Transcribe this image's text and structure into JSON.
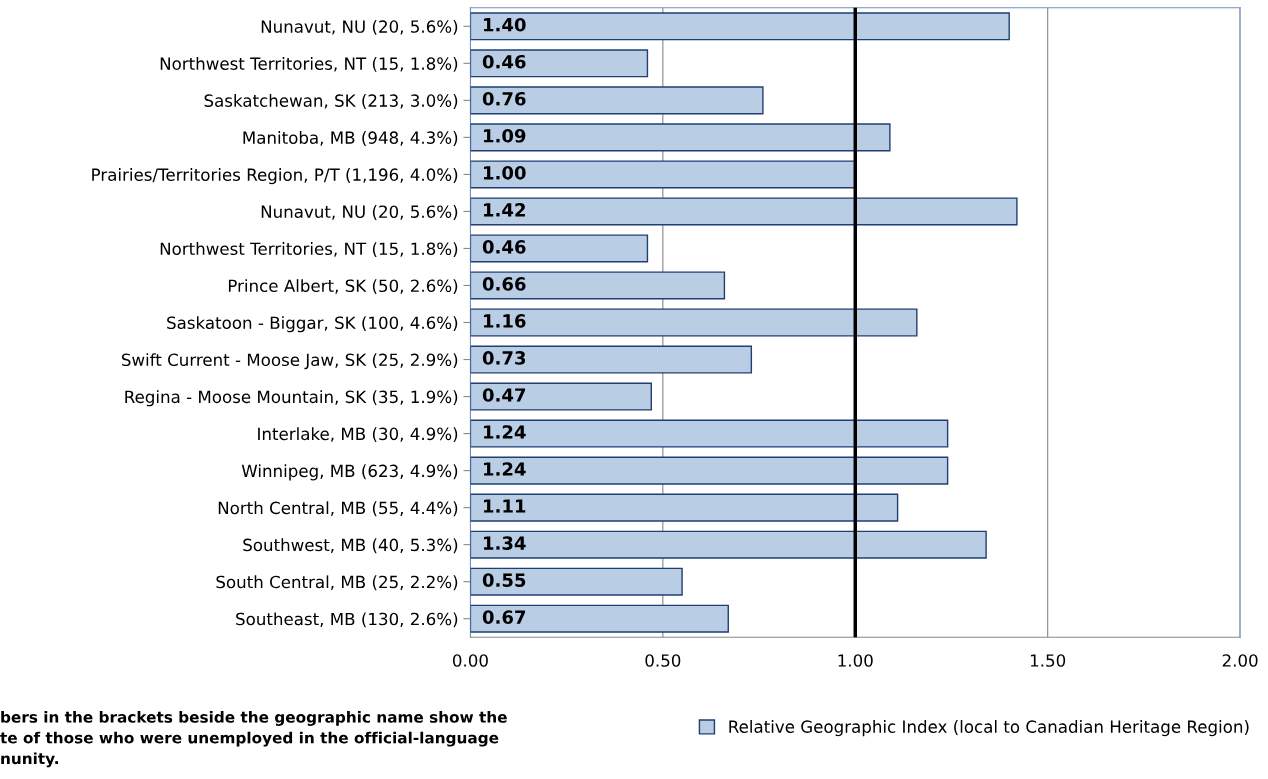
{
  "chart_data": {
    "type": "bar",
    "orientation": "horizontal",
    "categories": [
      "Nunavut, NU (20, 5.6%)",
      "Northwest Territories, NT (15, 1.8%)",
      "Saskatchewan, SK (213, 3.0%)",
      "Manitoba, MB (948, 4.3%)",
      "Prairies/Territories Region, P/T (1,196, 4.0%)",
      "Nunavut, NU (20, 5.6%)",
      "Northwest Territories, NT (15, 1.8%)",
      "Prince Albert, SK (50, 2.6%)",
      "Saskatoon - Biggar, SK (100, 4.6%)",
      "Swift Current - Moose Jaw, SK (25, 2.9%)",
      "Regina - Moose Mountain, SK (35, 1.9%)",
      "Interlake, MB (30, 4.9%)",
      "Winnipeg, MB (623, 4.9%)",
      "North Central, MB (55, 4.4%)",
      "Southwest, MB (40, 5.3%)",
      "South Central, MB (25, 2.2%)",
      "Southeast, MB (130, 2.6%)"
    ],
    "series": [
      {
        "name": "Relative Geographic Index (local to Canadian Heritage Region)",
        "color": "#b9cde5",
        "values": [
          1.4,
          0.46,
          0.76,
          1.09,
          1.0,
          1.42,
          0.46,
          0.66,
          1.16,
          0.73,
          0.47,
          1.24,
          1.24,
          1.11,
          1.34,
          0.55,
          0.67
        ],
        "value_labels": [
          "1.40",
          "0.46",
          "0.76",
          "1.09",
          "1.00",
          "1.42",
          "0.46",
          "0.66",
          "1.16",
          "0.73",
          "0.47",
          "1.24",
          "1.24",
          "1.11",
          "1.34",
          "0.55",
          "0.67"
        ]
      }
    ],
    "xlim": [
      0,
      2
    ],
    "xticks": [
      {
        "value": 0,
        "label": "0.00"
      },
      {
        "value": 0.5,
        "label": "0.50"
      },
      {
        "value": 1,
        "label": "1.00"
      },
      {
        "value": 1.5,
        "label": "1.50"
      },
      {
        "value": 2,
        "label": "2.00"
      }
    ],
    "ref_lines": [
      {
        "axis": "x",
        "value": 1.0,
        "color": "#000000"
      }
    ],
    "grid": "x",
    "legend": "bottom",
    "annotations": [
      "bers in the brackets beside the geographic name show the\nte of those who were unemployed in the official-language\nnunity."
    ]
  }
}
